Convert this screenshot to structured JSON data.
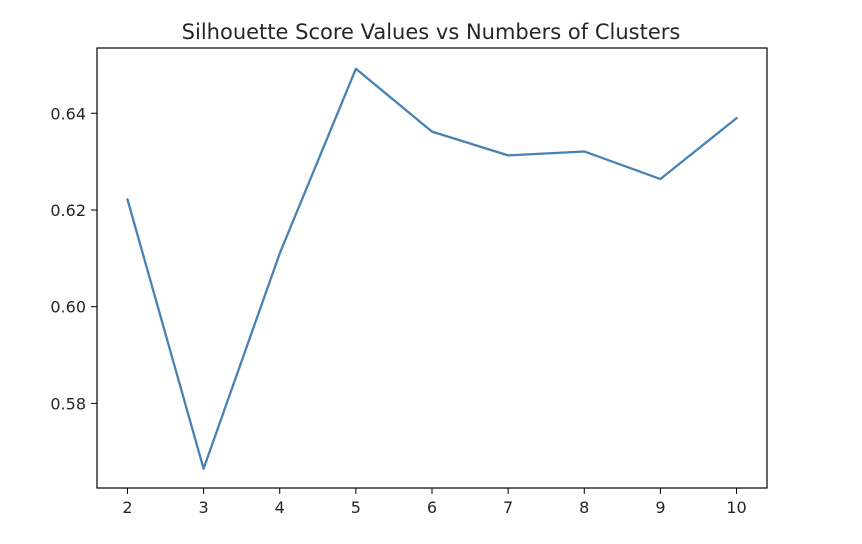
{
  "chart_data": {
    "type": "line",
    "title": "Silhouette Score Values vs Numbers of Clusters",
    "xlabel": "",
    "ylabel": "",
    "x": [
      2,
      3,
      4,
      5,
      6,
      7,
      8,
      9,
      10
    ],
    "series": [
      {
        "values": [
          0.6222,
          0.5665,
          0.611,
          0.6492,
          0.6362,
          0.6313,
          0.6321,
          0.6264,
          0.639
        ]
      }
    ],
    "xlim": [
      1.6,
      10.4
    ],
    "ylim": [
      0.5625,
      0.6535
    ],
    "xticks": [
      2,
      3,
      4,
      5,
      6,
      7,
      8,
      9,
      10
    ],
    "yticks": [
      0.58,
      0.6,
      0.62,
      0.64
    ],
    "ytick_labels": [
      "0.58",
      "0.60",
      "0.62",
      "0.64"
    ],
    "grid": false,
    "line_color": "#4682b4"
  }
}
